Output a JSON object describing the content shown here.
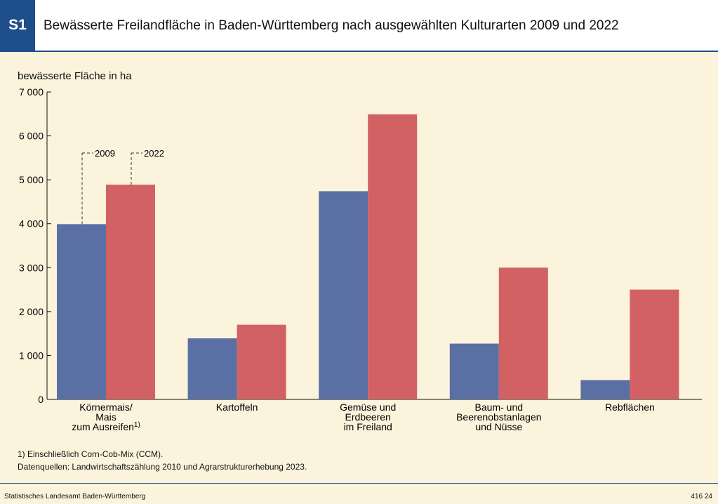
{
  "header": {
    "badge": "S1",
    "title": "Bewässerte Freilandfläche in Baden-Württemberg nach ausgewählten Kulturarten 2009 und 2022"
  },
  "chart_data": {
    "type": "bar",
    "ylabel": "bewässerte Fläche in ha",
    "ylim": [
      0,
      7000
    ],
    "yticks": [
      0,
      1000,
      2000,
      3000,
      4000,
      5000,
      6000,
      7000
    ],
    "ytick_labels": [
      "0",
      "1 000",
      "2 000",
      "3 000",
      "4 000",
      "5 000",
      "6 000",
      "7 000"
    ],
    "categories": [
      [
        "Körnermais/",
        "Mais",
        "zum Ausreifen"
      ],
      [
        "Kartoffeln"
      ],
      [
        "Gemüse und",
        "Erdbeeren",
        "im Freiland"
      ],
      [
        "Baum- und",
        "Beerenobstanlagen",
        "und Nüsse"
      ],
      [
        "Rebflächen"
      ]
    ],
    "category_footnote_marks": [
      "1)",
      "",
      "",
      "",
      ""
    ],
    "series": [
      {
        "name": "2009",
        "color": "#5a6fa3",
        "values": [
          3990,
          1390,
          4740,
          1270,
          440
        ]
      },
      {
        "name": "2022",
        "color": "#d26163",
        "values": [
          4890,
          1700,
          6490,
          3000,
          2500
        ]
      }
    ],
    "legend": "annotations"
  },
  "footnotes": {
    "note1": "1) Einschließlich Corn-Cob-Mix (CCM).",
    "sources": "Datenquellen: Landwirtschaftszählung 2010 und Agrarstrukturerhebung 2023."
  },
  "footer": {
    "publisher": "Statistisches Landesamt Baden-Württemberg",
    "code": "416 24"
  }
}
